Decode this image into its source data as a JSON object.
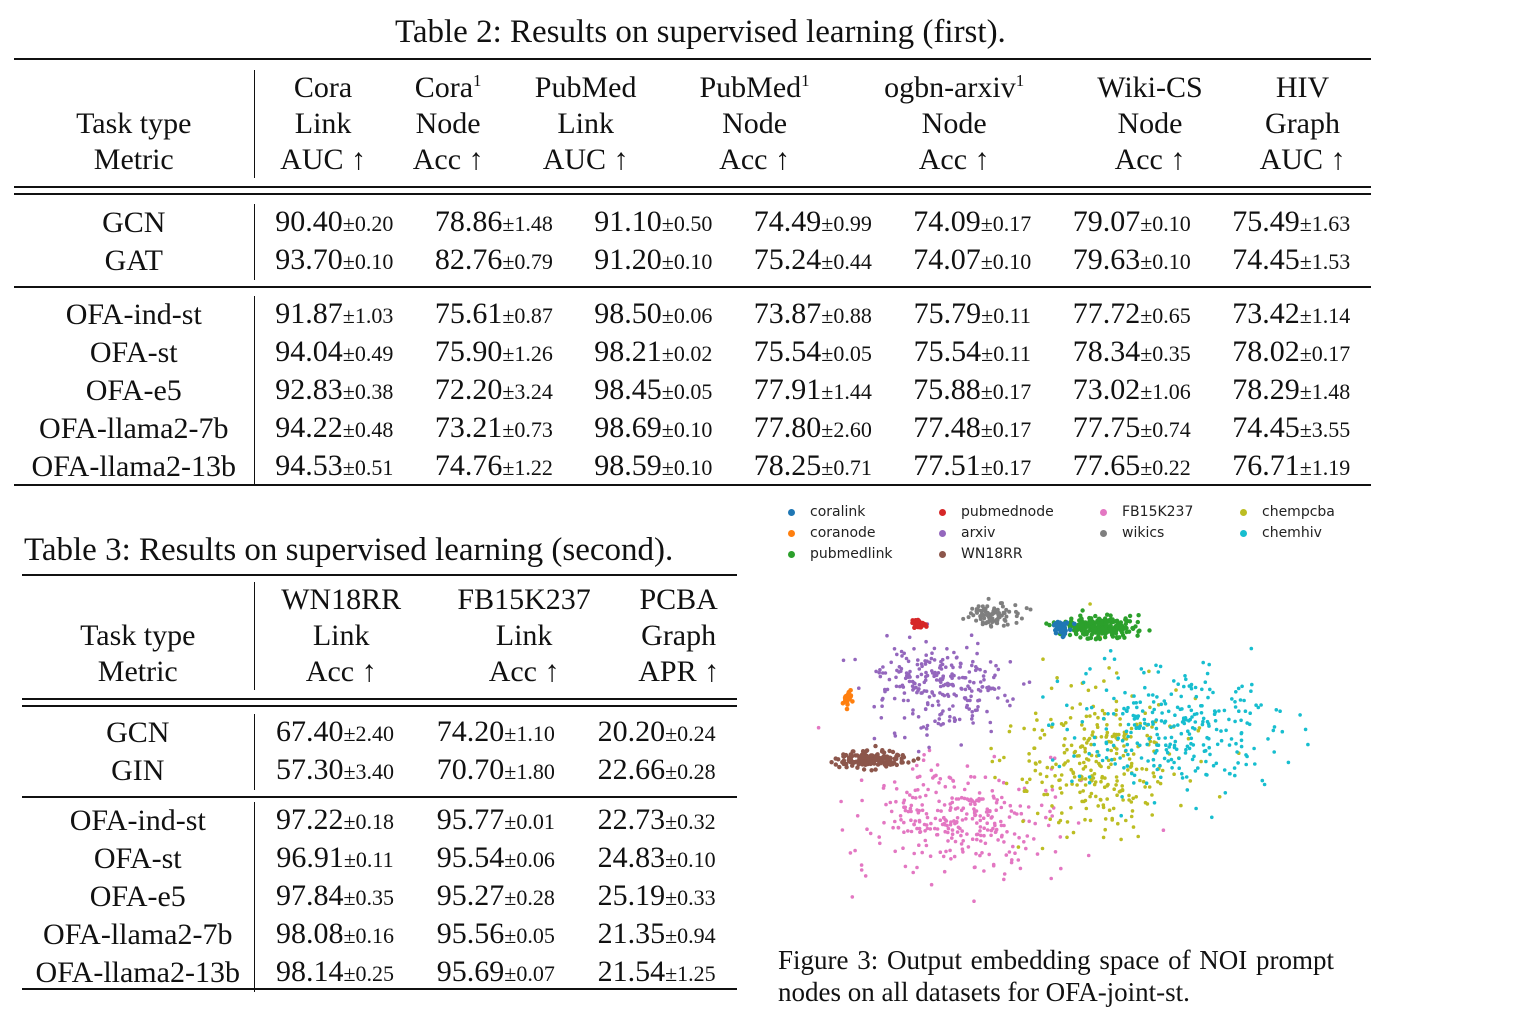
{
  "table2": {
    "caption": "Table 2: Results on supervised learning (first).",
    "header_label_1": "Task type",
    "header_label_2": "Metric",
    "columns": [
      {
        "l1": "Cora",
        "sup": "",
        "l2": "Link",
        "l3": "AUC ↑"
      },
      {
        "l1": "Cora",
        "sup": "1",
        "l2": "Node",
        "l3": "Acc ↑"
      },
      {
        "l1": "PubMed",
        "sup": "",
        "l2": "Link",
        "l3": "AUC ↑"
      },
      {
        "l1": "PubMed",
        "sup": "1",
        "l2": "Node",
        "l3": "Acc ↑"
      },
      {
        "l1": "ogbn-arxiv",
        "sup": "1",
        "l2": "Node",
        "l3": "Acc ↑"
      },
      {
        "l1": "Wiki-CS",
        "sup": "",
        "l2": "Node",
        "l3": "Acc ↑"
      },
      {
        "l1": "HIV",
        "sup": "",
        "l2": "Graph",
        "l3": "AUC ↑"
      }
    ],
    "groups": [
      [
        {
          "name": "GCN",
          "cells": [
            [
              "90.40",
              "±0.20",
              false
            ],
            [
              "78.86",
              "±1.48",
              false
            ],
            [
              "91.10",
              "±0.50",
              false
            ],
            [
              "74.49",
              "±0.99",
              false
            ],
            [
              "74.09",
              "±0.17",
              false
            ],
            [
              "79.07",
              "±0.10",
              false
            ],
            [
              "75.49",
              "±1.63",
              false
            ]
          ]
        },
        {
          "name": "GAT",
          "cells": [
            [
              "93.70",
              "±0.10",
              false
            ],
            [
              "82.76",
              "±0.79",
              true
            ],
            [
              "91.20",
              "±0.10",
              false
            ],
            [
              "75.24",
              "±0.44",
              false
            ],
            [
              "74.07",
              "±0.10",
              false
            ],
            [
              "79.63",
              "±0.10",
              true
            ],
            [
              "74.45",
              "±1.53",
              false
            ]
          ]
        }
      ],
      [
        {
          "name": "OFA-ind-st",
          "cells": [
            [
              "91.87",
              "±1.03",
              false
            ],
            [
              "75.61",
              "±0.87",
              false
            ],
            [
              "98.50",
              "±0.06",
              false
            ],
            [
              "73.87",
              "±0.88",
              false
            ],
            [
              "75.79",
              "±0.11",
              false
            ],
            [
              "77.72",
              "±0.65",
              false
            ],
            [
              "73.42",
              "±1.14",
              false
            ]
          ]
        },
        {
          "name": "OFA-st",
          "cells": [
            [
              "94.04",
              "±0.49",
              false
            ],
            [
              "75.90",
              "±1.26",
              false
            ],
            [
              "98.21",
              "±0.02",
              false
            ],
            [
              "75.54",
              "±0.05",
              false
            ],
            [
              "75.54",
              "±0.11",
              false
            ],
            [
              "78.34",
              "±0.35",
              false
            ],
            [
              "78.02",
              "±0.17",
              false
            ]
          ]
        },
        {
          "name": "OFA-e5",
          "cells": [
            [
              "92.83",
              "±0.38",
              false
            ],
            [
              "72.20",
              "±3.24",
              false
            ],
            [
              "98.45",
              "±0.05",
              false
            ],
            [
              "77.91",
              "±1.44",
              false
            ],
            [
              "75.88",
              "±0.17",
              false
            ],
            [
              "73.02",
              "±1.06",
              false
            ],
            [
              "78.29",
              "±1.48",
              true
            ]
          ]
        },
        {
          "name": "OFA-llama2-7b",
          "cells": [
            [
              "94.22",
              "±0.48",
              false
            ],
            [
              "73.21",
              "±0.73",
              false
            ],
            [
              "98.69",
              "±0.10",
              true
            ],
            [
              "77.80",
              "±2.60",
              false
            ],
            [
              "77.48",
              "±0.17",
              false
            ],
            [
              "77.75",
              "±0.74",
              false
            ],
            [
              "74.45",
              "±3.55",
              false
            ]
          ]
        },
        {
          "name": "OFA-llama2-13b",
          "cells": [
            [
              "94.53",
              "±0.51",
              true
            ],
            [
              "74.76",
              "±1.22",
              false
            ],
            [
              "98.59",
              "±0.10",
              false
            ],
            [
              "78.25",
              "±0.71",
              true
            ],
            [
              "77.51",
              "±0.17",
              true
            ],
            [
              "77.65",
              "±0.22",
              false
            ],
            [
              "76.71",
              "±1.19",
              false
            ]
          ]
        }
      ]
    ]
  },
  "table3": {
    "caption": "Table 3: Results on supervised learning (second).",
    "header_label_1": "Task type",
    "header_label_2": "Metric",
    "columns": [
      {
        "l1": "WN18RR",
        "sup": "",
        "l2": "Link",
        "l3": "Acc ↑"
      },
      {
        "l1": "FB15K237",
        "sup": "",
        "l2": "Link",
        "l3": "Acc ↑"
      },
      {
        "l1": "PCBA",
        "sup": "",
        "l2": "Graph",
        "l3": "APR ↑"
      }
    ],
    "groups": [
      [
        {
          "name": "GCN",
          "cells": [
            [
              "67.40",
              "±2.40",
              false
            ],
            [
              "74.20",
              "±1.10",
              false
            ],
            [
              "20.20",
              "±0.24",
              false
            ]
          ]
        },
        {
          "name": "GIN",
          "cells": [
            [
              "57.30",
              "±3.40",
              false
            ],
            [
              "70.70",
              "±1.80",
              false
            ],
            [
              "22.66",
              "±0.28",
              false
            ]
          ]
        }
      ],
      [
        {
          "name": "OFA-ind-st",
          "cells": [
            [
              "97.22",
              "±0.18",
              false
            ],
            [
              "95.77",
              "±0.01",
              true
            ],
            [
              "22.73",
              "±0.32",
              false
            ]
          ]
        },
        {
          "name": "OFA-st",
          "cells": [
            [
              "96.91",
              "±0.11",
              false
            ],
            [
              "95.54",
              "±0.06",
              false
            ],
            [
              "24.83",
              "±0.10",
              false
            ]
          ]
        },
        {
          "name": "OFA-e5",
          "cells": [
            [
              "97.84",
              "±0.35",
              false
            ],
            [
              "95.27",
              "±0.28",
              false
            ],
            [
              "25.19",
              "±0.33",
              true
            ]
          ]
        },
        {
          "name": "OFA-llama2-7b",
          "cells": [
            [
              "98.08",
              "±0.16",
              false
            ],
            [
              "95.56",
              "±0.05",
              false
            ],
            [
              "21.35",
              "±0.94",
              false
            ]
          ]
        },
        {
          "name": "OFA-llama2-13b",
          "cells": [
            [
              "98.14",
              "±0.25",
              true
            ],
            [
              "95.69",
              "±0.07",
              false
            ],
            [
              "21.54",
              "±1.25",
              false
            ]
          ]
        }
      ]
    ]
  },
  "figure3": {
    "caption": "Figure 3: Output embedding space of NOI prompt nodes on all datasets for OFA-joint-st.",
    "legend": [
      {
        "label": "coralink",
        "color": "#1f77b4"
      },
      {
        "label": "coranode",
        "color": "#ff7f0e"
      },
      {
        "label": "pubmedlink",
        "color": "#2ca02c"
      },
      {
        "label": "pubmednode",
        "color": "#d62728"
      },
      {
        "label": "arxiv",
        "color": "#9467bd"
      },
      {
        "label": "WN18RR",
        "color": "#8c564b"
      },
      {
        "label": "FB15K237",
        "color": "#e377c2"
      },
      {
        "label": "wikics",
        "color": "#7f7f7f"
      },
      {
        "label": "chempcba",
        "color": "#bcbd22"
      },
      {
        "label": "chemhiv",
        "color": "#17becf"
      }
    ]
  }
}
